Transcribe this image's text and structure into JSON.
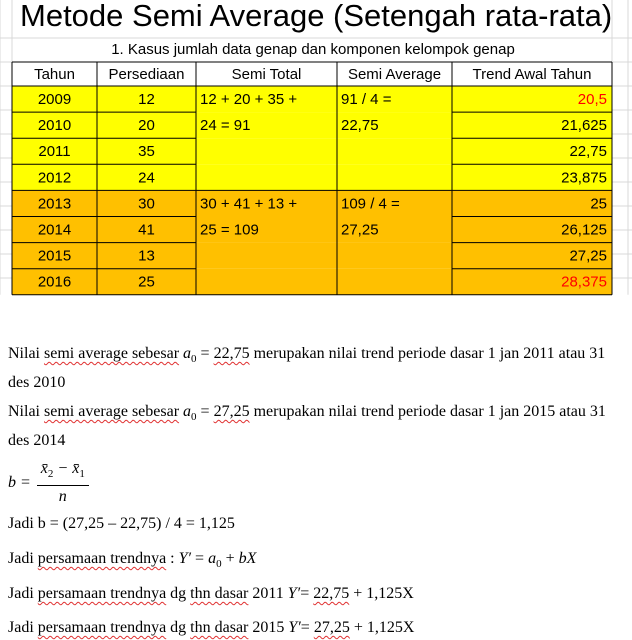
{
  "sheet": {
    "title": "Metode Semi Average (Setengah rata-rata)",
    "subtitle": "1. Kasus jumlah data genap dan komponen kelompok genap",
    "headers": [
      "Tahun",
      "Persediaan",
      "Semi Total",
      "Semi Average",
      "Trend Awal Tahun"
    ],
    "rows": [
      [
        "2009",
        "12",
        "20,5"
      ],
      [
        "2010",
        "20",
        "21,625"
      ],
      [
        "2011",
        "35",
        "22,75"
      ],
      [
        "2012",
        "24",
        "23,875"
      ],
      [
        "2013",
        "30",
        "25"
      ],
      [
        "2014",
        "41",
        "26,125"
      ],
      [
        "2015",
        "13",
        "27,25"
      ],
      [
        "2016",
        "25",
        "28,375"
      ]
    ],
    "groups": [
      {
        "semi_total": [
          "12 + 20 + 35 +",
          "24 = 91"
        ],
        "semi_average": [
          "91 / 4 =",
          "22,75"
        ]
      },
      {
        "semi_total": [
          "30 + 41 + 13 +",
          "25 = 109"
        ],
        "semi_average": [
          "109 / 4 =",
          "27,25"
        ]
      }
    ]
  },
  "notes": [
    [
      "Nilai ",
      "semi average sebesar",
      " ",
      "a",
      "0",
      " = ",
      "22,75",
      " merupakan nilai trend periode dasar 1 jan 2011 atau 31 des 2010"
    ],
    [
      "Nilai ",
      "semi average sebesar",
      " ",
      "a",
      "0",
      " = ",
      "27,25",
      " merupakan nilai trend periode dasar 1 jan 2015 atau 31 des 2014"
    ],
    [
      "b =",
      "x̄",
      "2",
      " − ",
      "x̄",
      "1",
      "n"
    ],
    [
      "Jadi b = (27,25 – 22,75) / 4 = 1,125"
    ],
    [
      "Jadi ",
      "persamaan trendnya",
      " : ",
      "Y′",
      " = ",
      "a",
      "0",
      " + ",
      "bX"
    ],
    [
      "Jadi ",
      "persamaan trendnya",
      " dg ",
      "thn dasar",
      " 2011 ",
      "Y′",
      "= ",
      "22,75",
      " + 1,125X"
    ],
    [
      "Jadi ",
      "persamaan trendnya",
      " dg ",
      "thn dasar",
      " 2015 ",
      "Y′",
      "= ",
      "27,25",
      " + 1,125X"
    ]
  ]
}
